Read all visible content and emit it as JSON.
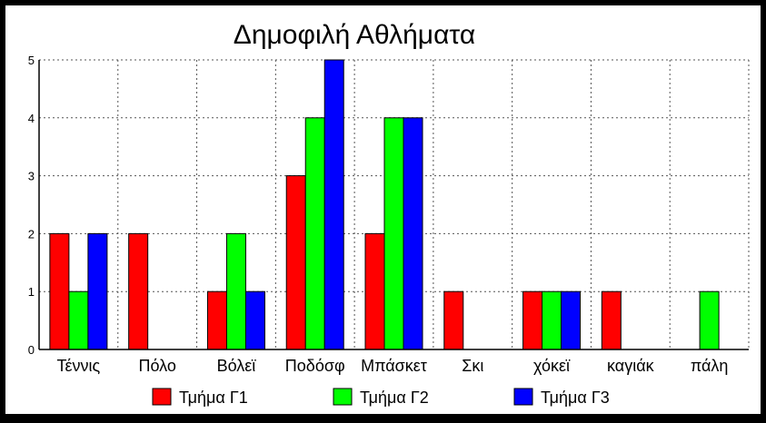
{
  "chart_data": {
    "type": "bar",
    "title": "Δημοφιλή Αθλήματα",
    "categories": [
      "Τέννις",
      "Πόλο",
      "Βόλεϊ",
      "Ποδόσφ",
      "Μπάσκετ",
      "Σκι",
      "χόκεϊ",
      "καγιάκ",
      "πάλη"
    ],
    "series": [
      {
        "name": "Τμήμα Γ1",
        "color": "#ff0000",
        "values": [
          2,
          2,
          1,
          3,
          2,
          1,
          1,
          1,
          0
        ]
      },
      {
        "name": "Τμήμα Γ2",
        "color": "#00ff00",
        "values": [
          1,
          0,
          2,
          4,
          4,
          0,
          1,
          0,
          1
        ]
      },
      {
        "name": "Τμήμα Γ3",
        "color": "#0000ff",
        "values": [
          2,
          0,
          1,
          5,
          4,
          0,
          1,
          0,
          0
        ]
      }
    ],
    "ylim": [
      0,
      5
    ],
    "yticks": [
      "0",
      "1",
      "2",
      "3",
      "4",
      "5"
    ],
    "grid": true,
    "legend": "bottom"
  }
}
